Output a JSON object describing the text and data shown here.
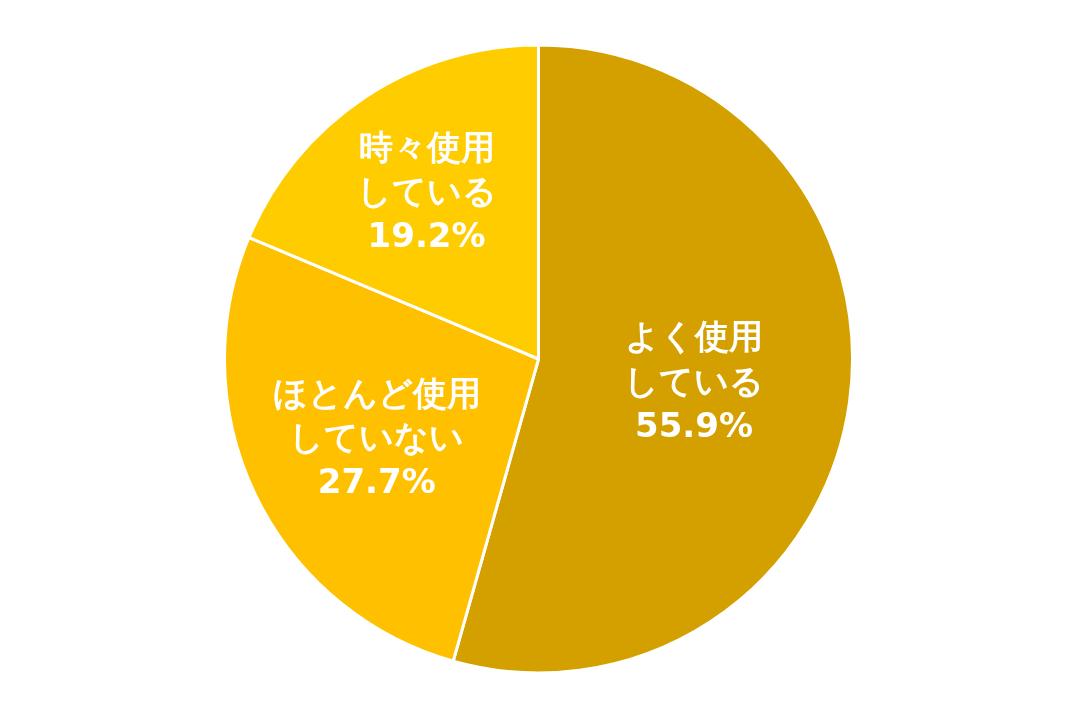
{
  "chart_data": {
    "type": "pie",
    "categories": [
      "よく使用している",
      "ほとんど使用していない",
      "時々使用している"
    ],
    "values": [
      55.9,
      27.7,
      19.2
    ],
    "value_labels": [
      "55.9%",
      "27.7%",
      "19.2%"
    ],
    "colors": [
      "#d4a000",
      "#ffc000",
      "#ffcc00"
    ],
    "legend": false
  }
}
